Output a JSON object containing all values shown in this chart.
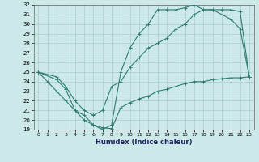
{
  "xlabel": "Humidex (Indice chaleur)",
  "ylabel": "",
  "bg_color": "#cce8e8",
  "line_color": "#2e7d6e",
  "grid_color": "#aacece",
  "xlim": [
    -0.5,
    23.5
  ],
  "ylim": [
    19,
    32
  ],
  "xticks": [
    0,
    1,
    2,
    3,
    4,
    5,
    6,
    7,
    8,
    9,
    10,
    11,
    12,
    13,
    14,
    15,
    16,
    17,
    18,
    19,
    20,
    21,
    22,
    23
  ],
  "yticks": [
    19,
    20,
    21,
    22,
    23,
    24,
    25,
    26,
    27,
    28,
    29,
    30,
    31,
    32
  ],
  "line1_x": [
    0,
    1,
    2,
    3,
    4,
    5,
    6,
    7,
    8,
    9,
    10,
    11,
    12,
    13,
    14,
    15,
    16,
    17,
    18,
    19,
    21,
    22,
    23
  ],
  "line1_y": [
    25,
    24,
    23,
    22,
    21,
    20,
    19.5,
    19,
    19.5,
    25,
    27.5,
    29,
    30,
    31.5,
    31.5,
    31.5,
    31.7,
    32,
    31.5,
    31.5,
    30.5,
    29.5,
    24.5
  ],
  "line2_x": [
    0,
    2,
    3,
    4,
    5,
    6,
    7,
    8,
    9,
    10,
    11,
    12,
    13,
    14,
    15,
    16,
    17,
    18,
    19,
    20,
    21,
    22,
    23
  ],
  "line2_y": [
    25,
    24.5,
    23.5,
    22,
    21,
    20.5,
    21,
    23.5,
    24,
    25.5,
    26.5,
    27.5,
    28,
    28.5,
    29.5,
    30,
    31,
    31.5,
    31.5,
    31.5,
    31.5,
    31.3,
    24.5
  ],
  "line3_x": [
    0,
    2,
    3,
    4,
    5,
    6,
    7,
    8,
    9,
    10,
    11,
    12,
    13,
    14,
    15,
    16,
    17,
    18,
    19,
    20,
    21,
    22,
    23
  ],
  "line3_y": [
    25,
    24.2,
    23.2,
    21,
    20.5,
    19.5,
    19.2,
    19.1,
    21.3,
    21.8,
    22.2,
    22.5,
    23,
    23.2,
    23.5,
    23.8,
    24,
    24,
    24.2,
    24.3,
    24.4,
    24.4,
    24.5
  ]
}
